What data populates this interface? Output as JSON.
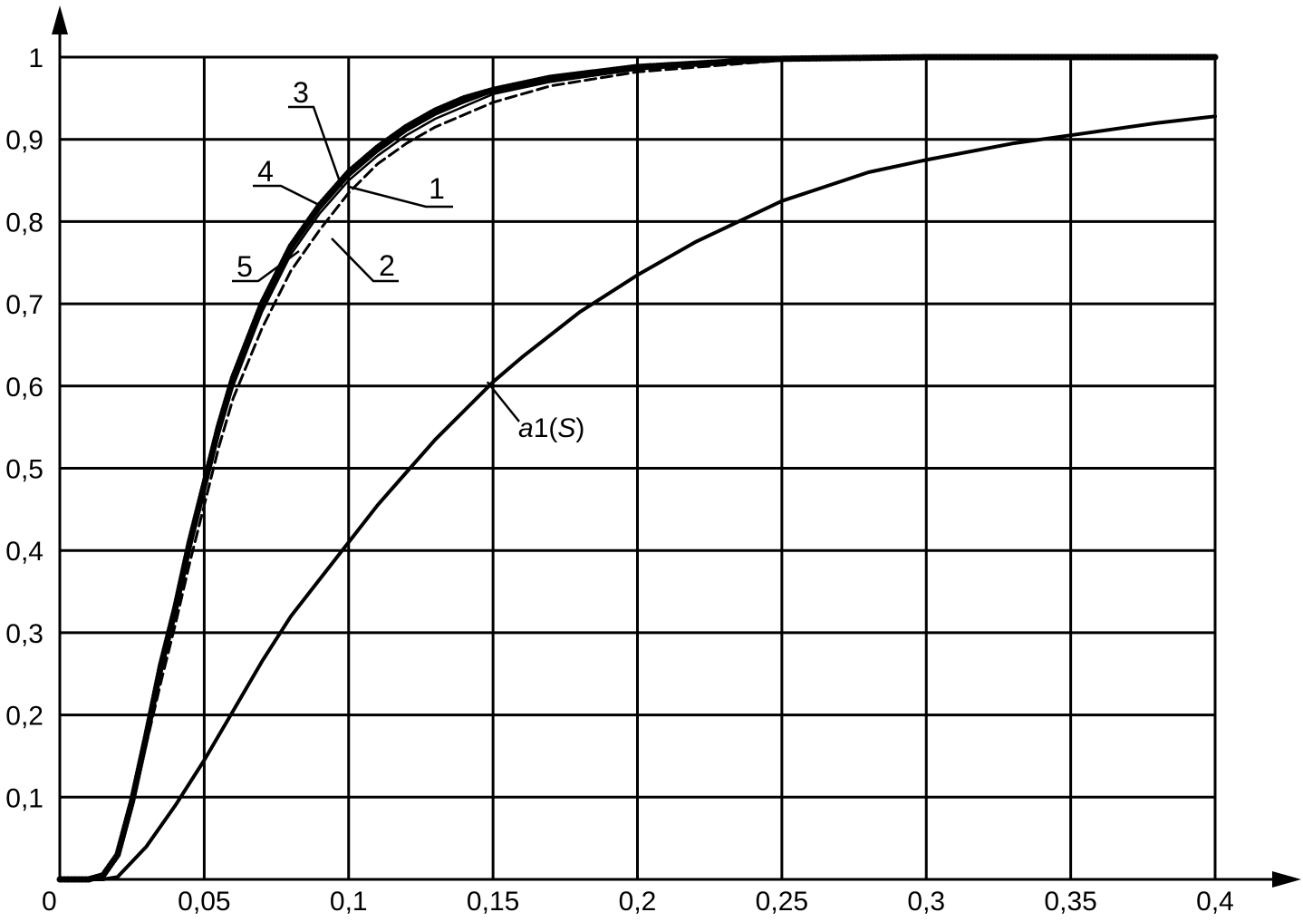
{
  "chart_data": {
    "type": "line",
    "title": "",
    "xlabel": "",
    "ylabel": "",
    "xlim": [
      0,
      0.4
    ],
    "ylim": [
      0,
      1
    ],
    "grid": true,
    "origin_label": "0",
    "x_ticks": [
      {
        "value": 0.05,
        "label": "0,05"
      },
      {
        "value": 0.1,
        "label": "0,1"
      },
      {
        "value": 0.15,
        "label": "0,15"
      },
      {
        "value": 0.2,
        "label": "0,2"
      },
      {
        "value": 0.25,
        "label": "0,25"
      },
      {
        "value": 0.3,
        "label": "0,3"
      },
      {
        "value": 0.35,
        "label": "0,35"
      },
      {
        "value": 0.4,
        "label": "0,4"
      }
    ],
    "y_ticks": [
      {
        "value": 0.1,
        "label": "0,1"
      },
      {
        "value": 0.2,
        "label": "0,2"
      },
      {
        "value": 0.3,
        "label": "0,3"
      },
      {
        "value": 0.4,
        "label": "0,4"
      },
      {
        "value": 0.5,
        "label": "0,5"
      },
      {
        "value": 0.6,
        "label": "0,6"
      },
      {
        "value": 0.7,
        "label": "0,7"
      },
      {
        "value": 0.8,
        "label": "0,8"
      },
      {
        "value": 0.9,
        "label": "0,9"
      },
      {
        "value": 1.0,
        "label": "1"
      }
    ],
    "series": [
      {
        "name": "1",
        "style": "solid-thin",
        "x": [
          0,
          0.01,
          0.015,
          0.02,
          0.025,
          0.03,
          0.035,
          0.04,
          0.045,
          0.05,
          0.055,
          0.06,
          0.07,
          0.08,
          0.09,
          0.1,
          0.11,
          0.12,
          0.13,
          0.14,
          0.15,
          0.17,
          0.2,
          0.25,
          0.3,
          0.35,
          0.4
        ],
        "y": [
          0,
          0.0,
          0.005,
          0.03,
          0.09,
          0.17,
          0.25,
          0.32,
          0.4,
          0.47,
          0.54,
          0.6,
          0.69,
          0.76,
          0.81,
          0.85,
          0.88,
          0.905,
          0.925,
          0.94,
          0.955,
          0.97,
          0.985,
          0.997,
          1.0,
          1.0,
          1.0
        ]
      },
      {
        "name": "2",
        "style": "dashed",
        "x": [
          0,
          0.01,
          0.015,
          0.02,
          0.025,
          0.03,
          0.035,
          0.04,
          0.045,
          0.05,
          0.055,
          0.06,
          0.07,
          0.08,
          0.09,
          0.1,
          0.11,
          0.12,
          0.13,
          0.14,
          0.15,
          0.17,
          0.2,
          0.25,
          0.3,
          0.35,
          0.4
        ],
        "y": [
          0,
          0.0,
          0.005,
          0.03,
          0.09,
          0.165,
          0.24,
          0.31,
          0.385,
          0.455,
          0.525,
          0.585,
          0.67,
          0.74,
          0.79,
          0.835,
          0.87,
          0.895,
          0.915,
          0.93,
          0.945,
          0.965,
          0.982,
          0.996,
          1.0,
          1.0,
          1.0
        ]
      },
      {
        "name": "3",
        "style": "dotted-thick",
        "x": [
          0,
          0.01,
          0.015,
          0.02,
          0.025,
          0.03,
          0.035,
          0.04,
          0.045,
          0.05,
          0.055,
          0.06,
          0.07,
          0.08,
          0.09,
          0.1,
          0.11,
          0.12,
          0.13,
          0.14,
          0.15,
          0.17,
          0.2,
          0.25,
          0.3,
          0.35,
          0.4
        ],
        "y": [
          0,
          0.0,
          0.005,
          0.03,
          0.095,
          0.175,
          0.26,
          0.33,
          0.41,
          0.48,
          0.55,
          0.61,
          0.7,
          0.77,
          0.82,
          0.86,
          0.89,
          0.915,
          0.935,
          0.95,
          0.96,
          0.975,
          0.988,
          0.998,
          1.0,
          1.0,
          1.0
        ]
      },
      {
        "name": "4",
        "style": "solid-thin",
        "x": [
          0,
          0.01,
          0.015,
          0.02,
          0.025,
          0.03,
          0.035,
          0.04,
          0.045,
          0.05,
          0.055,
          0.06,
          0.07,
          0.08,
          0.09,
          0.1,
          0.11,
          0.12,
          0.13,
          0.14,
          0.15,
          0.17,
          0.2,
          0.25,
          0.3,
          0.35,
          0.4
        ],
        "y": [
          0,
          0.0,
          0.005,
          0.03,
          0.092,
          0.172,
          0.255,
          0.325,
          0.405,
          0.475,
          0.545,
          0.605,
          0.695,
          0.765,
          0.815,
          0.855,
          0.885,
          0.91,
          0.93,
          0.945,
          0.958,
          0.972,
          0.986,
          0.997,
          1.0,
          1.0,
          1.0
        ]
      },
      {
        "name": "5",
        "style": "solid-thin",
        "x": [
          0,
          0.01,
          0.015,
          0.02,
          0.025,
          0.03,
          0.035,
          0.04,
          0.045,
          0.05,
          0.055,
          0.06,
          0.07,
          0.08,
          0.09,
          0.1,
          0.11,
          0.12,
          0.13,
          0.14,
          0.15,
          0.17,
          0.2,
          0.25,
          0.3,
          0.35,
          0.4
        ],
        "y": [
          0,
          0.0,
          0.005,
          0.03,
          0.093,
          0.173,
          0.257,
          0.327,
          0.407,
          0.477,
          0.547,
          0.607,
          0.697,
          0.767,
          0.817,
          0.857,
          0.887,
          0.912,
          0.932,
          0.947,
          0.959,
          0.973,
          0.987,
          0.997,
          1.0,
          1.0,
          1.0
        ]
      },
      {
        "name": "a1(S)",
        "style": "solid",
        "x": [
          0,
          0.015,
          0.02,
          0.03,
          0.04,
          0.05,
          0.06,
          0.07,
          0.08,
          0.09,
          0.1,
          0.11,
          0.12,
          0.13,
          0.14,
          0.15,
          0.16,
          0.18,
          0.2,
          0.22,
          0.25,
          0.28,
          0.3,
          0.33,
          0.35,
          0.38,
          0.4
        ],
        "y": [
          0,
          0.0,
          0.003,
          0.04,
          0.09,
          0.145,
          0.205,
          0.265,
          0.32,
          0.365,
          0.41,
          0.455,
          0.495,
          0.535,
          0.57,
          0.605,
          0.635,
          0.69,
          0.735,
          0.775,
          0.825,
          0.86,
          0.875,
          0.895,
          0.905,
          0.92,
          0.928
        ]
      }
    ],
    "annotations": [
      {
        "id": "3",
        "text": "3",
        "series": "3",
        "at_x": 0.098,
        "at_y": 0.84
      },
      {
        "id": "4",
        "text": "4",
        "series": "4",
        "at_x": 0.095,
        "at_y": 0.82
      },
      {
        "id": "1",
        "text": "1",
        "series": "1",
        "at_x": 0.1,
        "at_y": 0.83
      },
      {
        "id": "5",
        "text": "5",
        "series": "5",
        "at_x": 0.085,
        "at_y": 0.78
      },
      {
        "id": "2",
        "text": "2",
        "series": "2",
        "at_x": 0.095,
        "at_y": 0.79
      },
      {
        "id": "a1s",
        "text_main": "a",
        "text_rest": "1(",
        "text_var": "S",
        "text_close": ")",
        "series": "a1(S)",
        "at_x": 0.148,
        "at_y": 0.605
      }
    ]
  }
}
